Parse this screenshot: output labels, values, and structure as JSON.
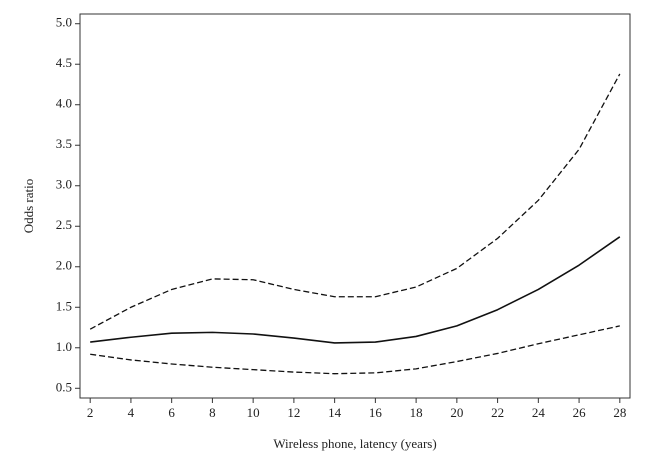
{
  "chart_data": {
    "type": "line",
    "xlabel": "Wireless phone, latency (years)",
    "ylabel": "Odds ratio",
    "x": [
      2,
      4,
      6,
      8,
      10,
      12,
      14,
      16,
      18,
      20,
      22,
      24,
      26,
      28
    ],
    "series": [
      {
        "color": "#111111",
        "dash": "solid",
        "values": [
          1.07,
          1.13,
          1.18,
          1.19,
          1.17,
          1.12,
          1.06,
          1.07,
          1.14,
          1.27,
          1.47,
          1.72,
          2.02,
          2.37
        ]
      },
      {
        "color": "#111111",
        "dash": "dashed",
        "values": [
          1.23,
          1.5,
          1.72,
          1.85,
          1.84,
          1.72,
          1.63,
          1.63,
          1.75,
          1.98,
          2.35,
          2.82,
          3.45,
          4.38
        ]
      },
      {
        "color": "#111111",
        "dash": "dashed",
        "values": [
          0.92,
          0.85,
          0.8,
          0.76,
          0.73,
          0.7,
          0.68,
          0.69,
          0.74,
          0.83,
          0.93,
          1.05,
          1.16,
          1.27
        ]
      }
    ],
    "xlim": [
      1.5,
      28.5
    ],
    "xticks": [
      2,
      4,
      6,
      8,
      10,
      12,
      14,
      16,
      18,
      20,
      22,
      24,
      26,
      28
    ],
    "ylim": [
      0.38,
      5.12
    ],
    "yticks": [
      0.5,
      {
        "value": 1,
        "label": "1.0"
      },
      1.5,
      {
        "value": 2,
        "label": "2.0"
      },
      2.5,
      {
        "value": 3,
        "label": "3.0"
      },
      3.5,
      {
        "value": 4,
        "label": "4.0"
      },
      4.5,
      {
        "value": 5,
        "label": "5.0"
      }
    ],
    "grid": false
  }
}
